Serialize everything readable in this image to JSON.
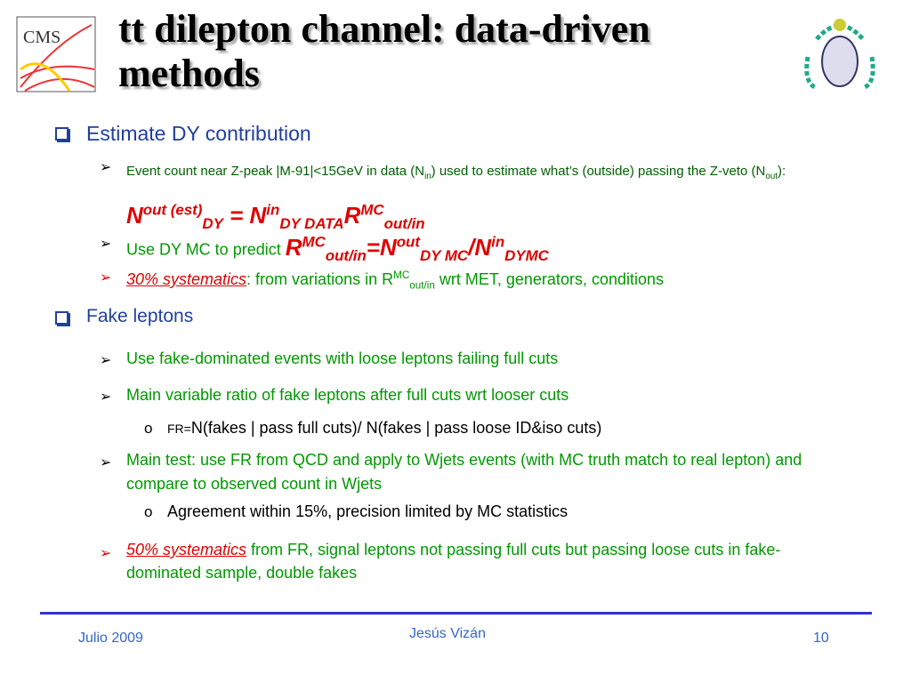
{
  "header": {
    "title": "tt dilepton channel: data-driven methods",
    "logo_left": "CMS"
  },
  "sections": [
    {
      "heading": "Estimate DY contribution",
      "items": [
        {
          "runs": [
            "Event count near Z-peak |M-91|<15GeV in data (N",
            "in",
            ") used to estimate what’s (outside) passing the Z-veto (N",
            "out",
            "): ",
            "N",
            "out (est)",
            "DY",
            " = N",
            "in",
            "DY DATA",
            "R",
            "MC",
            "out/in"
          ]
        },
        {
          "runs": [
            "Use DY MC to predict ",
            "R",
            "MC",
            "out/in",
            "=N",
            "out",
            "DY MC",
            "/N",
            "in",
            "DYMC"
          ]
        },
        {
          "runs": [
            "30% systematics",
            ": from variations in R",
            "MC",
            "out/in",
            " wrt MET, generators, conditions"
          ]
        }
      ]
    },
    {
      "heading": "Fake leptons",
      "items": [
        {
          "runs": [
            "Use fake-dominated events with loose leptons failing full cuts"
          ]
        },
        {
          "runs": [
            "Main variable ratio of fake leptons after full cuts wrt looser cuts"
          ],
          "subitems": [
            {
              "runs": [
                "FR=",
                "N(fakes | pass full cuts)/ N(fakes | pass loose ID&iso cuts)"
              ]
            }
          ]
        },
        {
          "runs": [
            "Main test: use FR from QCD and apply to Wjets events (with MC truth match to real lepton) and compare to observed count in Wjets"
          ],
          "subitems": [
            {
              "runs": [
                "Agreement within 15%, precision limited by MC statistics"
              ]
            }
          ]
        },
        {
          "runs": [
            "50% systematics",
            " from FR, signal leptons not passing full cuts but passing loose cuts in fake-dominated sample,  double fakes"
          ]
        }
      ]
    }
  ],
  "footer": {
    "date": "Julio 2009",
    "author": "Jesús Vizán",
    "page": "10"
  }
}
